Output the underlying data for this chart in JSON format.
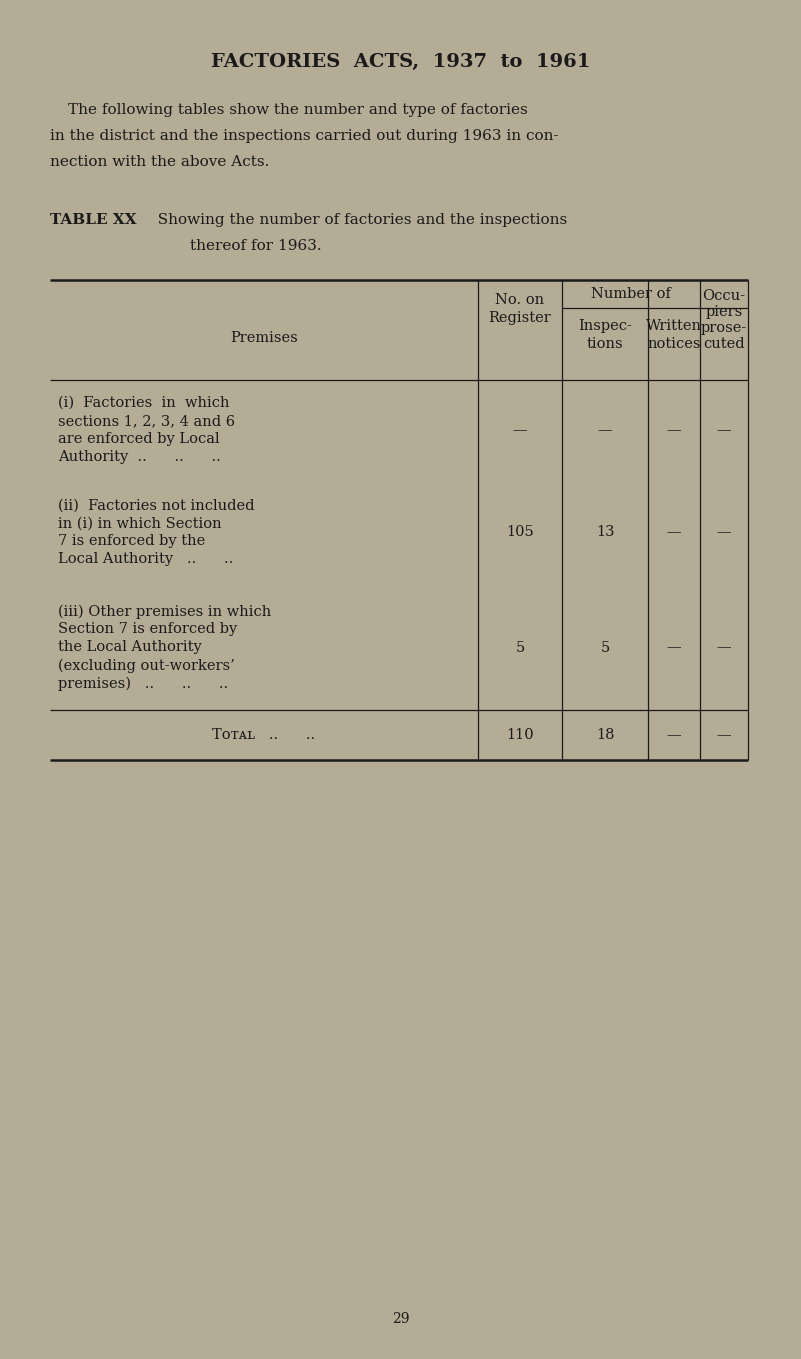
{
  "bg_color": "#b5ac96",
  "text_color": "#1a1a1a",
  "title": "FACTORIES  ACTS,  1937  to  1961",
  "para1": "The following tables show the number and type of factories",
  "para2": "in the district and the inspections carried out during 1963 in con-",
  "para3": "nection with the above Acts.",
  "table_label_bold": "TABLE XX",
  "table_label_rest": "  Showing the number of factories and the inspections",
  "table_label_cont": "thereof for 1963.",
  "row1_label": [
    "(i)  Factories  in  which",
    "sections 1, 2, 3, 4 and 6",
    "are enforced by Local",
    "Authority  ..      ..      .."
  ],
  "row1_vals": [
    "—",
    "—",
    "—",
    "—"
  ],
  "row2_label": [
    "(ii)  Factories not included",
    "in (i) in which Section",
    "7 is enforced by the",
    "Local Authority   ..      .."
  ],
  "row2_vals": [
    "105",
    "13",
    "—",
    "—"
  ],
  "row3_label": [
    "(iii) Other premises in which",
    "Section 7 is enforced by",
    "the Local Authority",
    "(excluding out-workers’",
    "premises)   ..      ..      .."
  ],
  "row3_vals": [
    "5",
    "5",
    "—",
    "—"
  ],
  "total_vals": [
    "110",
    "18",
    "—",
    "—"
  ],
  "page_number": "29",
  "font_size_title": 14,
  "font_size_body": 11,
  "font_size_table": 10.5,
  "font_size_small": 10
}
